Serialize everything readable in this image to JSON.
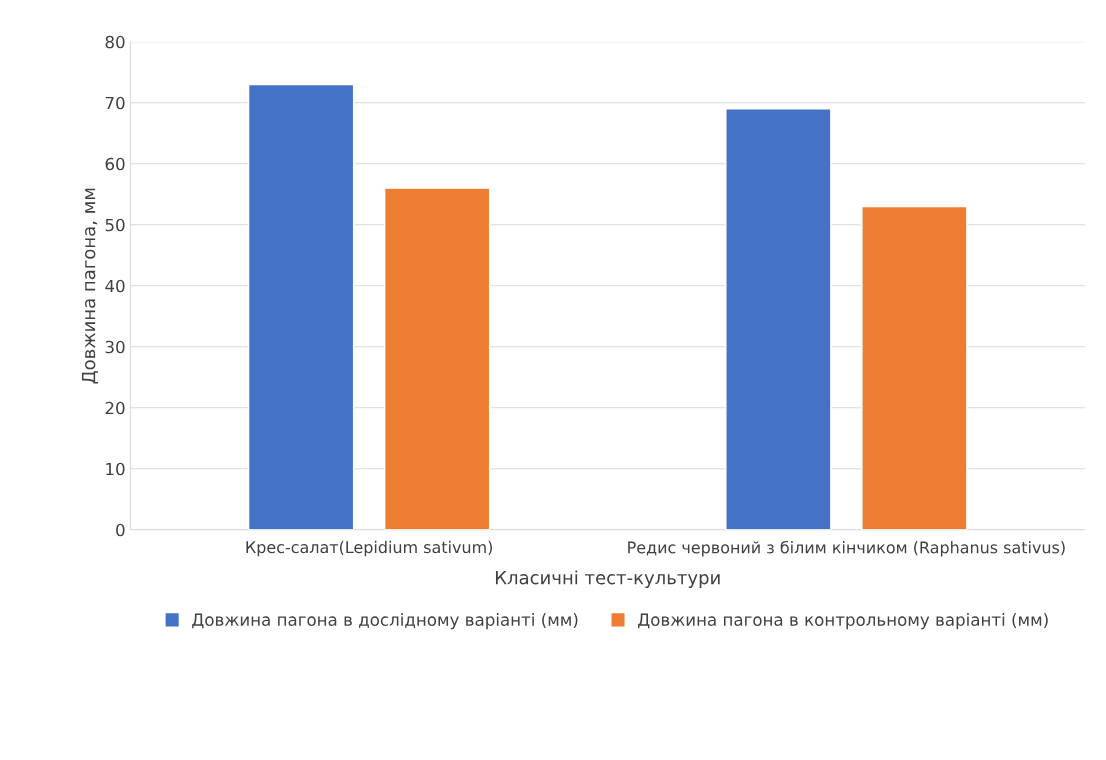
{
  "chart_data": {
    "type": "bar",
    "categories": [
      "Крес-салат(Lepidium sativum)",
      "Редис червоний з білим кінчиком (Raphanus sativus)"
    ],
    "xlabel": "Класичні тест-культури",
    "ylabel": "Довжина пагона, мм",
    "series": [
      {
        "name": "Довжина пагона в дослідному варіанті (мм)",
        "color": "#4472c4",
        "values": [
          73,
          69
        ]
      },
      {
        "name": "Довжина пагона в контрольному варіанті (мм)",
        "color": "#ed7d31",
        "values": [
          56,
          53
        ]
      }
    ],
    "ylim": [
      0,
      80
    ],
    "yticks": [
      0,
      10,
      20,
      30,
      40,
      50,
      60,
      70,
      80
    ],
    "grid": "y",
    "legend": "bottom"
  }
}
